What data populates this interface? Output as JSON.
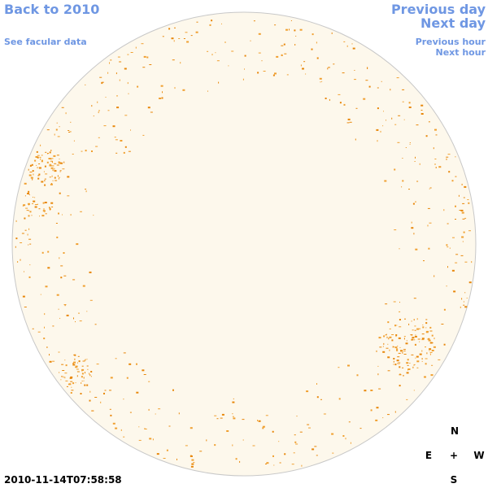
{
  "header": {
    "back_link": "Back to 2010",
    "facular_link": "See facular data"
  },
  "navigation": {
    "previous_day": "Previous day",
    "next_day": "Next day",
    "previous_hour": "Previous hour",
    "next_hour": "Next hour"
  },
  "timestamp": "2010-11-14T07:58:58",
  "compass": {
    "north": "N",
    "east": "E",
    "center": "+",
    "west": "W",
    "south": "S"
  }
}
